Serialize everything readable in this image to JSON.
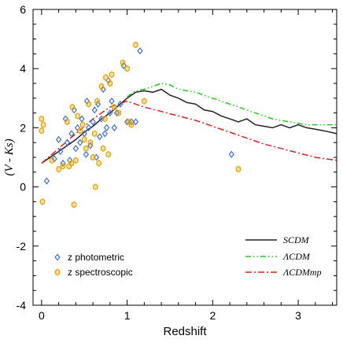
{
  "chart_data": {
    "type": "scatter",
    "xlabel": "Redshift",
    "ylabel": "(V - Ks)",
    "xlim": [
      -0.1,
      3.45
    ],
    "ylim": [
      -4,
      6
    ],
    "x_ticks": [
      0,
      1,
      2,
      3
    ],
    "y_ticks": [
      -4,
      -2,
      0,
      2,
      4,
      6
    ],
    "legend_position": "bottom",
    "scatter_series": [
      {
        "name": "z photometric",
        "marker": "diamond",
        "color": "#3a6fd8",
        "points": [
          [
            0.06,
            0.2
          ],
          [
            0.15,
            0.95
          ],
          [
            0.2,
            1.6
          ],
          [
            0.22,
            1.2
          ],
          [
            0.25,
            0.8
          ],
          [
            0.28,
            2.3
          ],
          [
            0.3,
            1.5
          ],
          [
            0.33,
            0.9
          ],
          [
            0.35,
            1.8
          ],
          [
            0.38,
            2.6
          ],
          [
            0.4,
            1.3
          ],
          [
            0.42,
            2.0
          ],
          [
            0.45,
            1.5
          ],
          [
            0.47,
            2.3
          ],
          [
            0.5,
            1.8
          ],
          [
            0.52,
            1.1
          ],
          [
            0.53,
            2.9
          ],
          [
            0.55,
            2.0
          ],
          [
            0.57,
            1.4
          ],
          [
            0.6,
            2.2
          ],
          [
            0.62,
            2.6
          ],
          [
            0.64,
            1.0
          ],
          [
            0.66,
            2.8
          ],
          [
            0.68,
            1.7
          ],
          [
            0.7,
            2.3
          ],
          [
            0.72,
            3.3
          ],
          [
            0.74,
            1.8
          ],
          [
            0.76,
            2.0
          ],
          [
            0.78,
            3.6
          ],
          [
            0.8,
            2.5
          ],
          [
            0.82,
            2.9
          ],
          [
            0.85,
            2.0
          ],
          [
            0.88,
            2.5
          ],
          [
            0.92,
            2.8
          ],
          [
            0.96,
            4.1
          ],
          [
            1.0,
            2.2
          ],
          [
            1.05,
            2.2
          ],
          [
            1.1,
            2.2
          ],
          [
            1.15,
            4.6
          ],
          [
            2.22,
            1.1
          ]
        ]
      },
      {
        "name": "z spectroscopic",
        "marker": "hexagon",
        "color": "#e8a200",
        "points": [
          [
            0.0,
            2.3
          ],
          [
            0.02,
            2.1
          ],
          [
            0.0,
            1.9
          ],
          [
            0.01,
            -0.5
          ],
          [
            0.12,
            0.9
          ],
          [
            0.2,
            0.6
          ],
          [
            0.25,
            0.7
          ],
          [
            0.3,
            2.2
          ],
          [
            0.32,
            0.7
          ],
          [
            0.35,
            0.8
          ],
          [
            0.36,
            2.7
          ],
          [
            0.38,
            -0.6
          ],
          [
            0.4,
            0.9
          ],
          [
            0.42,
            2.4
          ],
          [
            0.45,
            1.9
          ],
          [
            0.48,
            2.1
          ],
          [
            0.5,
            1.6
          ],
          [
            0.52,
            1.3
          ],
          [
            0.55,
            2.8
          ],
          [
            0.57,
            1.5
          ],
          [
            0.6,
            1.0
          ],
          [
            0.62,
            1.8
          ],
          [
            0.63,
            0.0
          ],
          [
            0.65,
            2.9
          ],
          [
            0.67,
            0.8
          ],
          [
            0.7,
            3.4
          ],
          [
            0.72,
            1.3
          ],
          [
            0.74,
            2.3
          ],
          [
            0.75,
            3.7
          ],
          [
            0.78,
            1.1
          ],
          [
            0.8,
            3.5
          ],
          [
            0.82,
            3.8
          ],
          [
            0.85,
            2.7
          ],
          [
            0.9,
            2.5
          ],
          [
            0.95,
            4.2
          ],
          [
            1.0,
            4.0
          ],
          [
            1.02,
            2.2
          ],
          [
            1.05,
            2.1
          ],
          [
            1.1,
            4.8
          ],
          [
            1.2,
            2.9
          ],
          [
            2.3,
            0.6
          ]
        ]
      }
    ],
    "line_series": [
      {
        "name": "SCDM",
        "style": "solid",
        "color": "#222222",
        "x": [
          0.0,
          0.1,
          0.2,
          0.3,
          0.4,
          0.5,
          0.6,
          0.7,
          0.8,
          0.9,
          1.0,
          1.1,
          1.2,
          1.3,
          1.4,
          1.5,
          1.6,
          1.7,
          1.8,
          1.9,
          2.0,
          2.1,
          2.2,
          2.3,
          2.4,
          2.5,
          2.6,
          2.7,
          2.8,
          2.9,
          3.0,
          3.1,
          3.2,
          3.3,
          3.45
        ],
        "y": [
          0.8,
          1.0,
          1.2,
          1.4,
          1.6,
          1.85,
          2.05,
          2.3,
          2.5,
          2.75,
          3.0,
          3.2,
          3.25,
          3.2,
          3.3,
          3.1,
          3.0,
          2.85,
          2.8,
          2.6,
          2.55,
          2.4,
          2.3,
          2.2,
          2.3,
          2.1,
          2.05,
          2.0,
          2.1,
          2.0,
          2.1,
          2.0,
          1.95,
          1.9,
          1.8
        ]
      },
      {
        "name": "ΛCDM",
        "style": "dash-dot-dot",
        "color": "#22cc22",
        "x": [
          1.0,
          1.1,
          1.2,
          1.3,
          1.4,
          1.5,
          1.6,
          1.7,
          1.8,
          1.9,
          2.0,
          2.1,
          2.2,
          2.3,
          2.4,
          2.5,
          2.6,
          2.7,
          2.8,
          2.9,
          3.0,
          3.1,
          3.2,
          3.3,
          3.45
        ],
        "y": [
          3.05,
          3.25,
          3.3,
          3.4,
          3.5,
          3.45,
          3.3,
          3.25,
          3.2,
          3.1,
          3.0,
          2.9,
          2.8,
          2.7,
          2.6,
          2.5,
          2.4,
          2.3,
          2.25,
          2.2,
          2.15,
          2.1,
          2.1,
          2.1,
          2.1
        ]
      },
      {
        "name": "ΛCDMmp",
        "style": "dash-dot",
        "color": "#dd2222",
        "x": [
          0.0,
          0.2,
          0.4,
          0.6,
          0.8,
          1.0,
          1.2,
          1.4,
          1.6,
          1.8,
          2.0,
          2.2,
          2.4,
          2.6,
          2.8,
          3.0,
          3.2,
          3.45
        ],
        "y": [
          0.8,
          1.3,
          1.8,
          2.3,
          2.7,
          2.9,
          2.7,
          2.55,
          2.4,
          2.25,
          2.05,
          1.85,
          1.65,
          1.45,
          1.3,
          1.15,
          1.0,
          0.9
        ]
      }
    ]
  }
}
